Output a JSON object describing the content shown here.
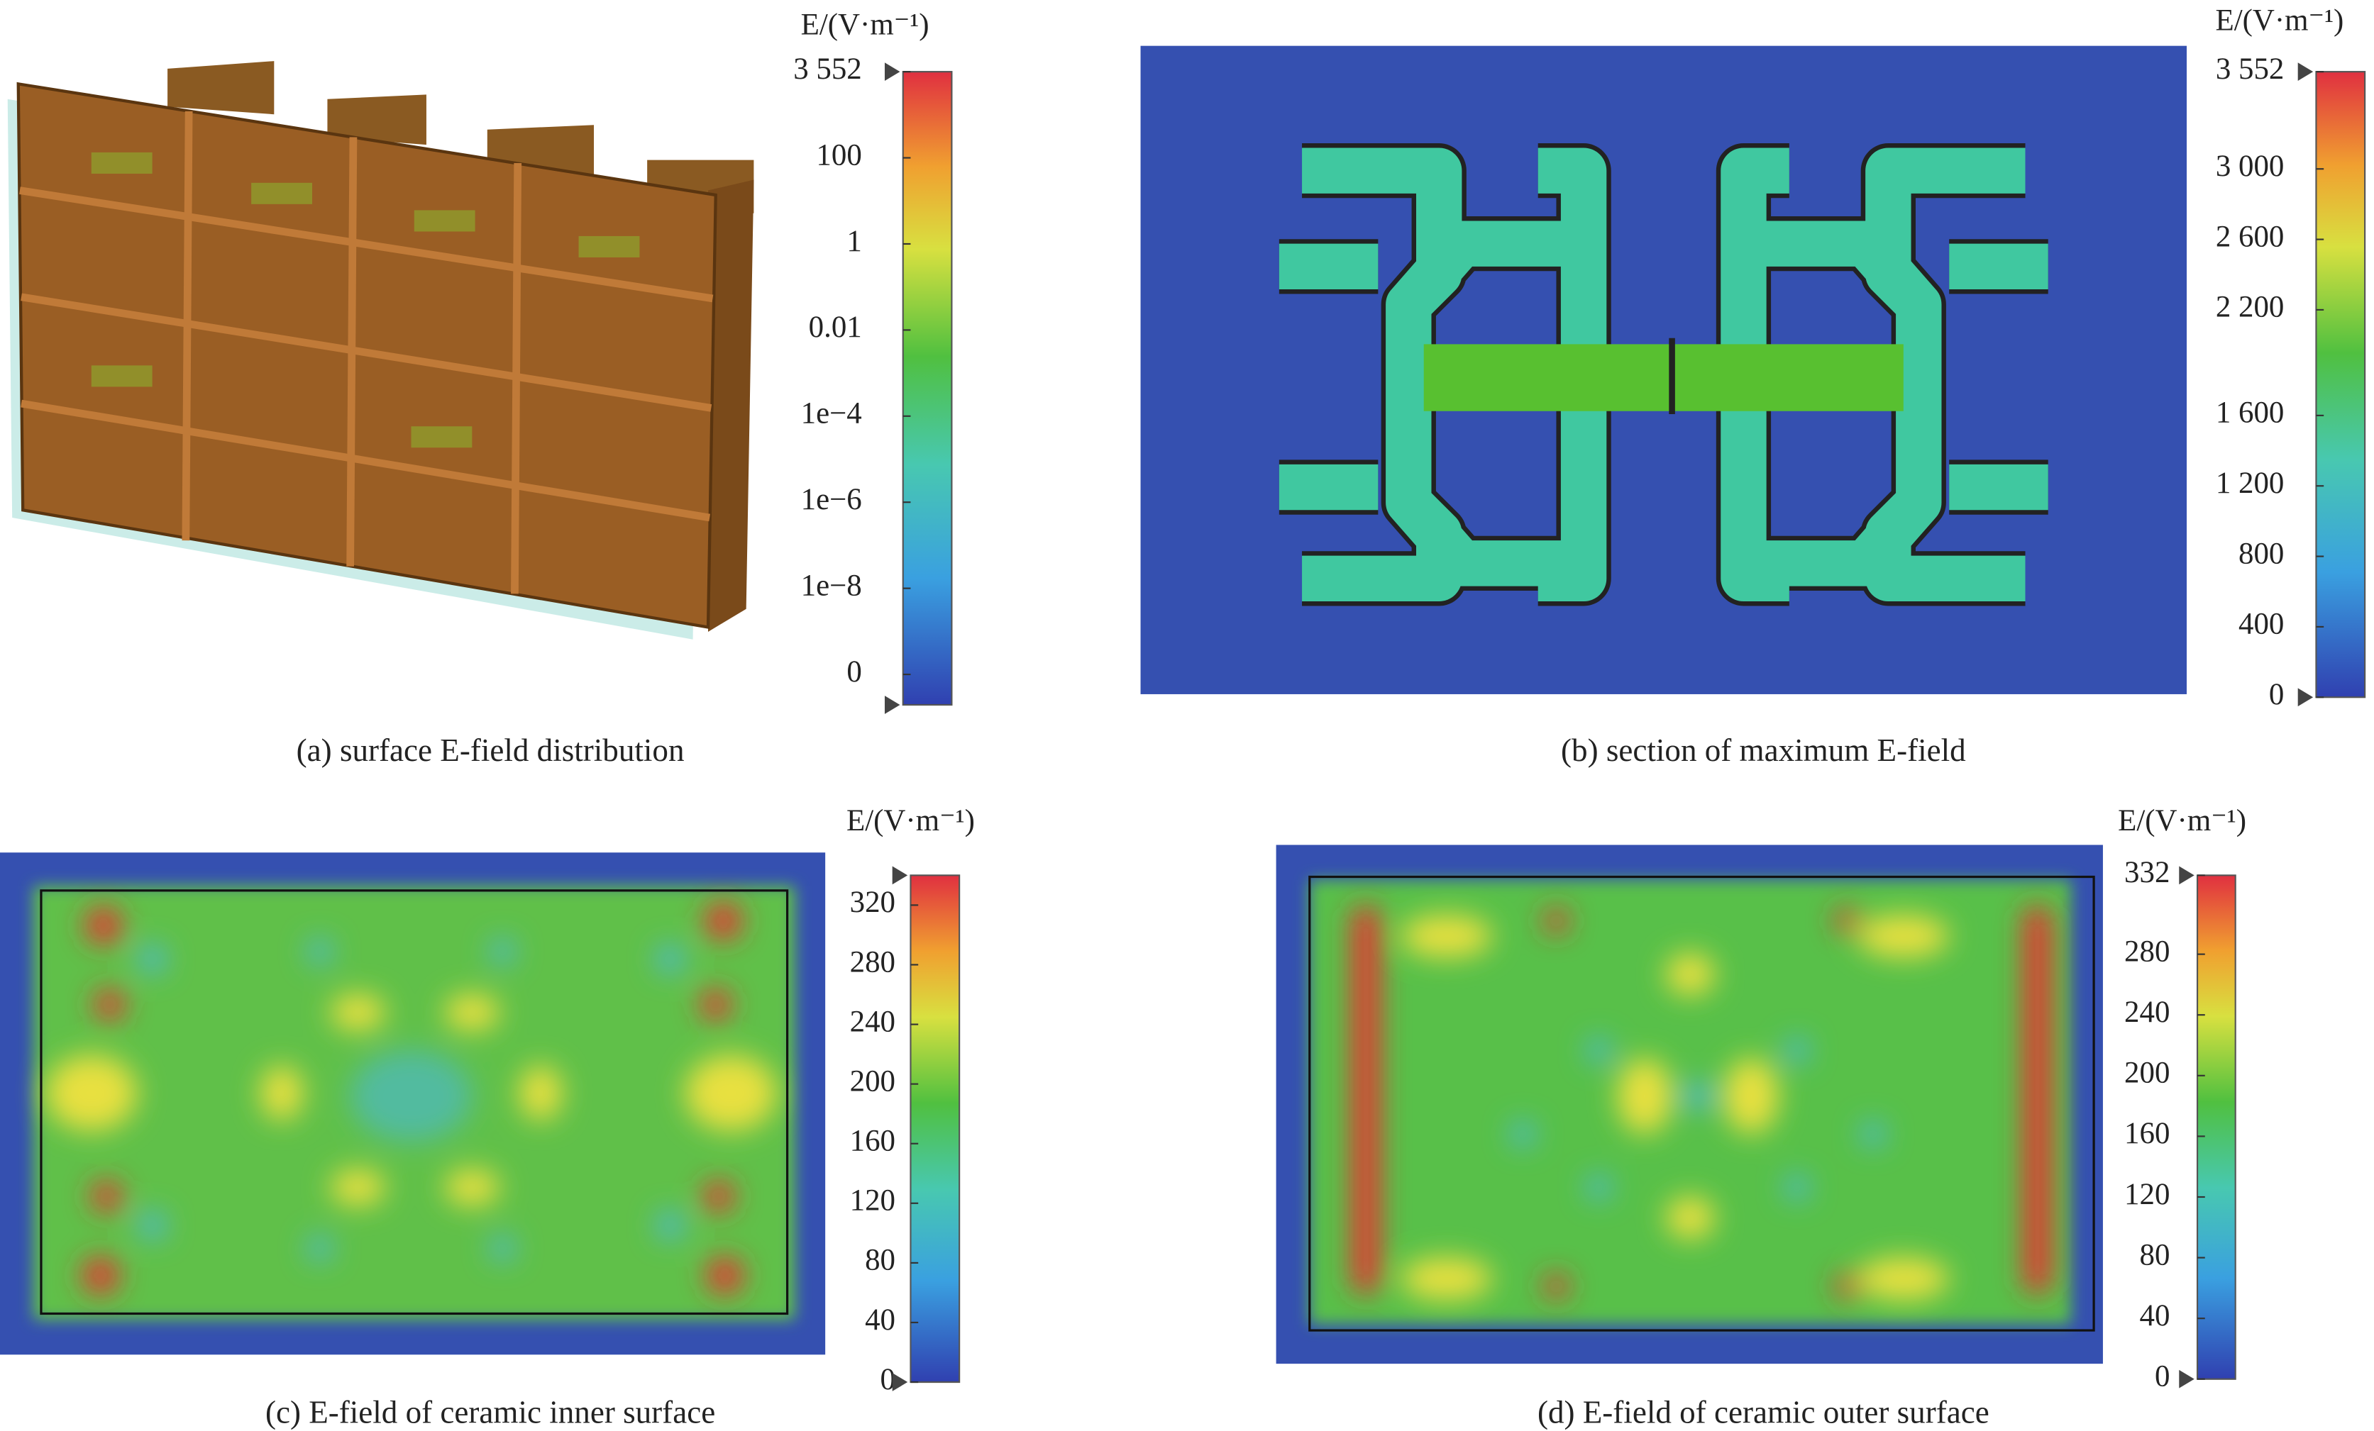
{
  "panels": [
    {
      "caption": "(a) surface E-field distribution",
      "colorbar": {
        "title": "E/(V·m⁻¹)",
        "ticks": [
          "3 552",
          "100",
          "1",
          "0.01",
          "1e−4",
          "1e−6",
          "1e−8",
          "0"
        ]
      }
    },
    {
      "caption": "(b) section of maximum E-field",
      "colorbar": {
        "title": "E/(V·m⁻¹)",
        "lim": [
          0,
          3552
        ],
        "ticks": [
          {
            "value": 3552,
            "label": "3 552"
          },
          {
            "value": 3000,
            "label": "3 000"
          },
          {
            "value": 2600,
            "label": "2 600"
          },
          {
            "value": 2200,
            "label": "2 200"
          },
          {
            "value": 1600,
            "label": "1 600"
          },
          {
            "value": 1200,
            "label": "1 200"
          },
          800,
          400,
          0
        ]
      }
    },
    {
      "caption": "(c) E-field of ceramic inner surface",
      "colorbar": {
        "title": "E/(V·m⁻¹)",
        "lim": [
          0,
          340
        ],
        "ticks": [
          320,
          280,
          240,
          200,
          160,
          120,
          80,
          40,
          0
        ]
      }
    },
    {
      "caption": "(d) E-field of ceramic outer surface",
      "colorbar": {
        "title": "E/(V·m⁻¹)",
        "lim": [
          0,
          332
        ],
        "ticks": [
          332,
          280,
          240,
          200,
          160,
          120,
          80,
          40,
          0
        ]
      }
    }
  ]
}
